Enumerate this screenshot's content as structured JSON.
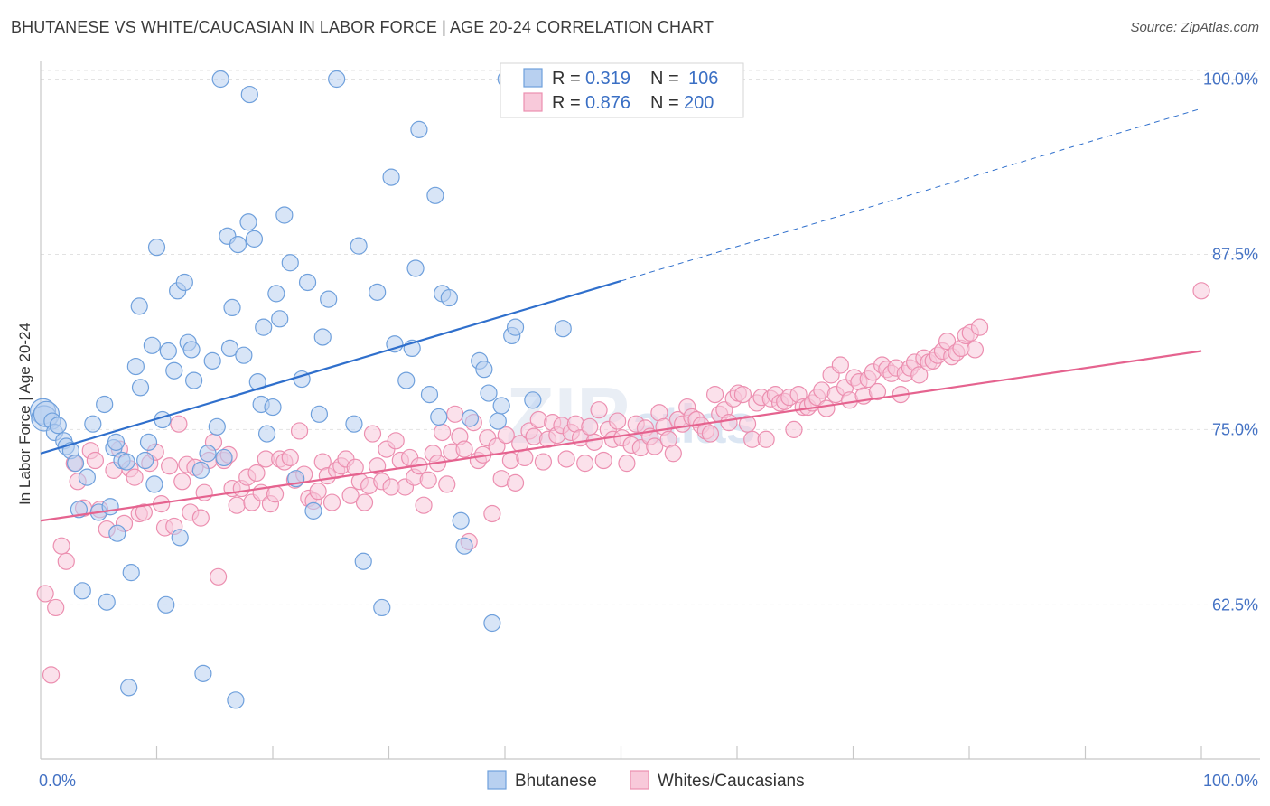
{
  "title": "BHUTANESE VS WHITE/CAUCASIAN IN LABOR FORCE | AGE 20-24 CORRELATION CHART",
  "source": "Source: ZipAtlas.com",
  "watermark": "ZIPatlas",
  "chart_data": {
    "type": "scatter",
    "title": "BHUTANESE VS WHITE/CAUCASIAN IN LABOR FORCE | AGE 20-24 CORRELATION CHART",
    "ylabel": "In Labor Force | Age 20-24",
    "xlabel": "",
    "xlim": [
      0,
      100
    ],
    "ylim": [
      51.5,
      101
    ],
    "x_tick_labels": [
      "0.0%",
      "100.0%"
    ],
    "y_ticks": [
      62.5,
      75.0,
      87.5,
      100.0
    ],
    "y_tick_labels": [
      "62.5%",
      "75.0%",
      "87.5%",
      "100.0%"
    ],
    "grid": true,
    "legend_position": "top-center",
    "series": [
      {
        "name": "Bhutanese",
        "color": "#6fa0dc",
        "fill": "#b8d0f0",
        "line_color": "#2f6fcc",
        "R": "0.319",
        "N": "106",
        "trend": {
          "x0": 0,
          "y0": 73.3,
          "x1": 50,
          "y1": 85.6,
          "dashed_to_x": 100,
          "dashed_to_y": 97.9
        },
        "points": [
          [
            0.2,
            76.3
          ],
          [
            0.3,
            75.8
          ],
          [
            0.5,
            76.1
          ],
          [
            1,
            75.6
          ],
          [
            1.2,
            74.8
          ],
          [
            1.5,
            75.3
          ],
          [
            2,
            74.2
          ],
          [
            2.2,
            73.8
          ],
          [
            2.6,
            73.5
          ],
          [
            3,
            72.6
          ],
          [
            3.3,
            69.3
          ],
          [
            3.6,
            63.5
          ],
          [
            4,
            71.6
          ],
          [
            4.5,
            75.4
          ],
          [
            5,
            69.1
          ],
          [
            5.5,
            76.8
          ],
          [
            5.7,
            62.7
          ],
          [
            6,
            69.5
          ],
          [
            6.3,
            73.7
          ],
          [
            6.5,
            74.1
          ],
          [
            6.6,
            67.6
          ],
          [
            7,
            72.8
          ],
          [
            7.4,
            72.7
          ],
          [
            7.6,
            56.6
          ],
          [
            7.8,
            64.8
          ],
          [
            8.2,
            79.5
          ],
          [
            8.5,
            83.8
          ],
          [
            8.6,
            78
          ],
          [
            9,
            72.8
          ],
          [
            9.3,
            74.1
          ],
          [
            9.6,
            81
          ],
          [
            9.8,
            71.1
          ],
          [
            10,
            88
          ],
          [
            10.5,
            75.7
          ],
          [
            10.8,
            62.5
          ],
          [
            11,
            80.6
          ],
          [
            11.5,
            79.2
          ],
          [
            11.8,
            84.9
          ],
          [
            12,
            67.3
          ],
          [
            12.4,
            85.5
          ],
          [
            12.7,
            81.2
          ],
          [
            13,
            80.7
          ],
          [
            13.2,
            78.5
          ],
          [
            13.8,
            72.1
          ],
          [
            14,
            57.6
          ],
          [
            14.4,
            73.3
          ],
          [
            14.8,
            79.9
          ],
          [
            15.2,
            75.2
          ],
          [
            15.5,
            100
          ],
          [
            15.8,
            73
          ],
          [
            16.1,
            88.8
          ],
          [
            16.3,
            80.8
          ],
          [
            16.5,
            83.7
          ],
          [
            16.8,
            55.7
          ],
          [
            17,
            88.2
          ],
          [
            17.5,
            80.3
          ],
          [
            17.9,
            89.8
          ],
          [
            18,
            98.9
          ],
          [
            18.4,
            88.6
          ],
          [
            18.7,
            78.4
          ],
          [
            19,
            76.8
          ],
          [
            19.2,
            82.3
          ],
          [
            19.5,
            74.7
          ],
          [
            20,
            76.6
          ],
          [
            20.3,
            84.7
          ],
          [
            20.6,
            82.9
          ],
          [
            21,
            90.3
          ],
          [
            21.5,
            86.9
          ],
          [
            22,
            71.5
          ],
          [
            22.5,
            78.6
          ],
          [
            23,
            85.5
          ],
          [
            23.5,
            69.2
          ],
          [
            24,
            76.1
          ],
          [
            24.3,
            81.6
          ],
          [
            24.8,
            84.3
          ],
          [
            25.5,
            100
          ],
          [
            27,
            75.4
          ],
          [
            27.4,
            88.1
          ],
          [
            27.8,
            65.6
          ],
          [
            29,
            84.8
          ],
          [
            29.4,
            62.3
          ],
          [
            30.2,
            93
          ],
          [
            30.5,
            81.1
          ],
          [
            31.5,
            78.5
          ],
          [
            32,
            80.8
          ],
          [
            32.3,
            86.5
          ],
          [
            32.6,
            96.4
          ],
          [
            33.5,
            77.5
          ],
          [
            34,
            91.7
          ],
          [
            34.3,
            75.9
          ],
          [
            34.6,
            84.7
          ],
          [
            35.2,
            84.4
          ],
          [
            36.2,
            68.5
          ],
          [
            36.5,
            66.7
          ],
          [
            37,
            75.8
          ],
          [
            37.8,
            79.9
          ],
          [
            38.2,
            79.3
          ],
          [
            38.6,
            77.6
          ],
          [
            38.9,
            61.2
          ],
          [
            39.4,
            75.6
          ],
          [
            39.7,
            76.7
          ],
          [
            40.1,
            100
          ],
          [
            40.6,
            81.7
          ],
          [
            40.9,
            82.3
          ],
          [
            42.4,
            77.1
          ],
          [
            45,
            82.2
          ]
        ]
      },
      {
        "name": "Whites/Caucasians",
        "color": "#ec8fb0",
        "fill": "#f8c9da",
        "line_color": "#e5638f",
        "R": "0.876",
        "N": "200",
        "trend": {
          "x0": 0,
          "y0": 68.5,
          "x1": 100,
          "y1": 80.6
        },
        "points": [
          [
            0.4,
            63.3
          ],
          [
            0.9,
            57.5
          ],
          [
            1.3,
            62.3
          ],
          [
            1.8,
            66.7
          ],
          [
            2.2,
            65.6
          ],
          [
            2.9,
            72.6
          ],
          [
            3.2,
            71.3
          ],
          [
            3.7,
            69.4
          ],
          [
            4.3,
            73.5
          ],
          [
            4.7,
            72.8
          ],
          [
            5.1,
            69.3
          ],
          [
            5.7,
            67.9
          ],
          [
            6.3,
            72.1
          ],
          [
            6.8,
            73.6
          ],
          [
            7.2,
            68.3
          ],
          [
            7.7,
            72.2
          ],
          [
            8.1,
            71.6
          ],
          [
            8.5,
            69
          ],
          [
            8.9,
            69.1
          ],
          [
            9.4,
            72.6
          ],
          [
            9.9,
            73.4
          ],
          [
            10.4,
            69.7
          ],
          [
            10.7,
            68
          ],
          [
            11.1,
            72.4
          ],
          [
            11.5,
            68.1
          ],
          [
            11.9,
            75.4
          ],
          [
            12.2,
            71.3
          ],
          [
            12.6,
            72.5
          ],
          [
            12.9,
            69.1
          ],
          [
            13.3,
            72.3
          ],
          [
            13.8,
            68.7
          ],
          [
            14.1,
            70.5
          ],
          [
            14.5,
            72.8
          ],
          [
            14.9,
            74.1
          ],
          [
            15.3,
            64.5
          ],
          [
            15.8,
            72.8
          ],
          [
            16.2,
            73.2
          ],
          [
            16.5,
            70.8
          ],
          [
            16.9,
            69.6
          ],
          [
            17.3,
            70.8
          ],
          [
            17.8,
            71.6
          ],
          [
            18.2,
            69.8
          ],
          [
            18.6,
            71.9
          ],
          [
            19,
            70.5
          ],
          [
            19.4,
            72.9
          ],
          [
            19.8,
            69.7
          ],
          [
            20.2,
            70.4
          ],
          [
            20.6,
            72.9
          ],
          [
            21,
            72.7
          ],
          [
            21.5,
            73
          ],
          [
            21.9,
            71.4
          ],
          [
            22.3,
            74.9
          ],
          [
            22.7,
            71.8
          ],
          [
            23.1,
            70.1
          ],
          [
            23.5,
            69.9
          ],
          [
            23.9,
            70.6
          ],
          [
            24.3,
            72.7
          ],
          [
            24.7,
            71.7
          ],
          [
            25.1,
            69.8
          ],
          [
            25.5,
            72.1
          ],
          [
            25.9,
            72.4
          ],
          [
            26.3,
            72.9
          ],
          [
            26.7,
            70.3
          ],
          [
            27.1,
            72.3
          ],
          [
            27.5,
            71.3
          ],
          [
            27.9,
            69.8
          ],
          [
            28.3,
            71
          ],
          [
            28.6,
            74.7
          ],
          [
            29,
            72.4
          ],
          [
            29.4,
            71.3
          ],
          [
            29.8,
            73.6
          ],
          [
            30.2,
            70.9
          ],
          [
            30.6,
            74.2
          ],
          [
            31,
            72.8
          ],
          [
            31.4,
            70.9
          ],
          [
            31.8,
            73
          ],
          [
            32.2,
            71.6
          ],
          [
            32.6,
            72.4
          ],
          [
            33,
            69.6
          ],
          [
            33.4,
            71.4
          ],
          [
            33.8,
            73.3
          ],
          [
            34.2,
            72.6
          ],
          [
            34.6,
            74.8
          ],
          [
            35,
            71.1
          ],
          [
            35.4,
            73.4
          ],
          [
            35.7,
            76.1
          ],
          [
            36.1,
            74.5
          ],
          [
            36.5,
            73.6
          ],
          [
            36.9,
            67
          ],
          [
            37.3,
            75.5
          ],
          [
            37.7,
            72.8
          ],
          [
            38.1,
            73.2
          ],
          [
            38.5,
            74.4
          ],
          [
            38.9,
            69
          ],
          [
            39.3,
            73.8
          ],
          [
            39.7,
            71.5
          ],
          [
            40.1,
            74.6
          ],
          [
            40.5,
            72.8
          ],
          [
            40.9,
            71.2
          ],
          [
            41.3,
            74
          ],
          [
            41.7,
            73
          ],
          [
            42.1,
            74.9
          ],
          [
            42.5,
            74.5
          ],
          [
            42.9,
            75.7
          ],
          [
            43.3,
            72.7
          ],
          [
            43.7,
            74.3
          ],
          [
            44.1,
            75.5
          ],
          [
            44.5,
            74.6
          ],
          [
            44.9,
            75.3
          ],
          [
            45.3,
            72.9
          ],
          [
            45.7,
            74.8
          ],
          [
            46.1,
            75.4
          ],
          [
            46.5,
            74.4
          ],
          [
            46.9,
            72.6
          ],
          [
            47.3,
            75.2
          ],
          [
            47.7,
            74.1
          ],
          [
            48.1,
            76.4
          ],
          [
            48.5,
            72.8
          ],
          [
            48.9,
            75
          ],
          [
            49.3,
            74.3
          ],
          [
            49.7,
            75.6
          ],
          [
            50.1,
            74.4
          ],
          [
            50.5,
            72.6
          ],
          [
            50.9,
            73.9
          ],
          [
            51.3,
            75.4
          ],
          [
            51.7,
            73.7
          ],
          [
            52.1,
            75.1
          ],
          [
            52.5,
            74.5
          ],
          [
            52.9,
            73.8
          ],
          [
            53.3,
            76.2
          ],
          [
            53.7,
            75.2
          ],
          [
            54.1,
            74.3
          ],
          [
            54.5,
            73.3
          ],
          [
            54.9,
            75.7
          ],
          [
            55.3,
            75.4
          ],
          [
            55.7,
            76.6
          ],
          [
            56.1,
            75.9
          ],
          [
            56.5,
            75.7
          ],
          [
            56.9,
            75.3
          ],
          [
            57.3,
            74.9
          ],
          [
            57.7,
            74.7
          ],
          [
            58.1,
            77.5
          ],
          [
            58.5,
            76.1
          ],
          [
            58.9,
            76.4
          ],
          [
            59.3,
            75.5
          ],
          [
            59.7,
            77.2
          ],
          [
            60.1,
            77.6
          ],
          [
            60.5,
            77.5
          ],
          [
            60.9,
            75.4
          ],
          [
            61.3,
            74.3
          ],
          [
            61.7,
            76.9
          ],
          [
            62.1,
            77.3
          ],
          [
            62.5,
            74.3
          ],
          [
            62.9,
            77.2
          ],
          [
            63.3,
            77.5
          ],
          [
            63.7,
            76.9
          ],
          [
            64.1,
            77
          ],
          [
            64.5,
            77.3
          ],
          [
            64.9,
            75
          ],
          [
            65.3,
            77.5
          ],
          [
            65.7,
            76.6
          ],
          [
            66.1,
            76.6
          ],
          [
            66.5,
            76.9
          ],
          [
            66.9,
            77.3
          ],
          [
            67.3,
            77.8
          ],
          [
            67.7,
            76.5
          ],
          [
            68.1,
            78.9
          ],
          [
            68.5,
            77.5
          ],
          [
            68.9,
            79.6
          ],
          [
            69.3,
            78
          ],
          [
            69.7,
            77.1
          ],
          [
            70.1,
            78.7
          ],
          [
            70.5,
            78.4
          ],
          [
            70.9,
            77.4
          ],
          [
            71.3,
            78.6
          ],
          [
            71.7,
            79.1
          ],
          [
            72.1,
            77.7
          ],
          [
            72.5,
            79.6
          ],
          [
            72.9,
            79.3
          ],
          [
            73.3,
            79
          ],
          [
            73.7,
            79.4
          ],
          [
            74.1,
            77.5
          ],
          [
            74.5,
            79
          ],
          [
            74.9,
            79.4
          ],
          [
            75.3,
            79.8
          ],
          [
            75.7,
            78.9
          ],
          [
            76.1,
            80.1
          ],
          [
            76.5,
            79.8
          ],
          [
            76.9,
            79.9
          ],
          [
            77.3,
            80.3
          ],
          [
            77.7,
            80.6
          ],
          [
            78.1,
            81.3
          ],
          [
            78.5,
            80.2
          ],
          [
            78.9,
            80.5
          ],
          [
            79.3,
            80.8
          ],
          [
            79.7,
            81.7
          ],
          [
            80.1,
            81.9
          ],
          [
            80.5,
            80.7
          ],
          [
            80.9,
            82.3
          ],
          [
            100,
            84.9
          ]
        ]
      }
    ]
  },
  "bottom_legend": [
    "Bhutanese",
    "Whites/Caucasians"
  ]
}
